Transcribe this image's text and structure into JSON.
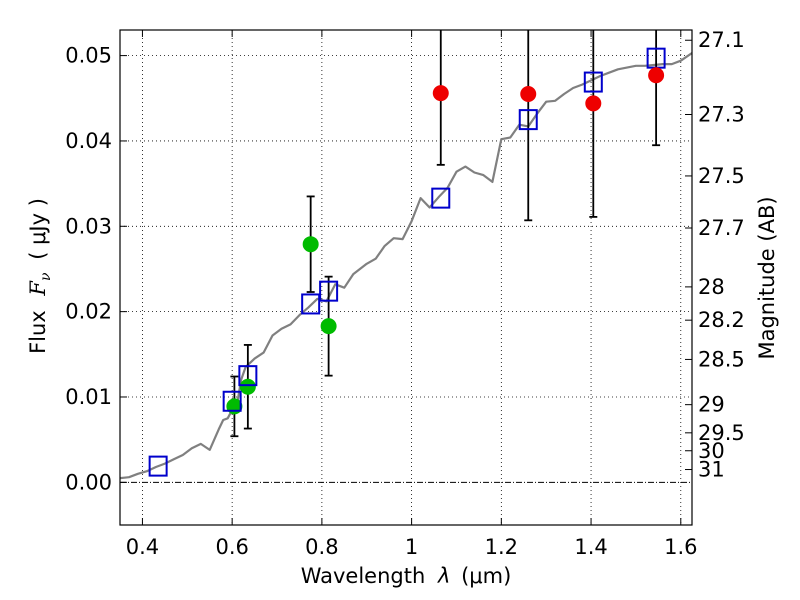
{
  "chart_data": {
    "type": "scatter",
    "xlabel_prefix": "Wavelength",
    "xlabel_symbol": "λ",
    "xlabel_unit": "(μm)",
    "ylabel_prefix": "Flux",
    "ylabel_symbol": "F",
    "ylabel_subscript": "ν",
    "ylabel_unit": "( μJy )",
    "y2label": "Magnitude (AB)",
    "xlim": [
      0.35,
      1.625
    ],
    "ylim": [
      -0.005,
      0.053
    ],
    "xticks": [
      0.4,
      0.6,
      0.8,
      1.0,
      1.2,
      1.4,
      1.6
    ],
    "xtick_labels": [
      "0.4",
      "0.6",
      "0.8",
      "1",
      "1.2",
      "1.4",
      "1.6"
    ],
    "yticks": [
      0.0,
      0.01,
      0.02,
      0.03,
      0.04,
      0.05
    ],
    "ytick_labels": [
      "0.00",
      "0.01",
      "0.02",
      "0.03",
      "0.04",
      "0.05"
    ],
    "mag_ticks": [
      {
        "label": "27.1",
        "flux": 0.0518
      },
      {
        "label": "27.3",
        "flux": 0.0431
      },
      {
        "label": "27.5",
        "flux": 0.0359
      },
      {
        "label": "27.7",
        "flux": 0.0298
      },
      {
        "label": "28",
        "flux": 0.0229
      },
      {
        "label": "28.2",
        "flux": 0.019
      },
      {
        "label": "28.5",
        "flux": 0.0144
      },
      {
        "label": "29",
        "flux": 0.0091
      },
      {
        "label": "29.5",
        "flux": 0.0058
      },
      {
        "label": "30",
        "flux": 0.0037
      },
      {
        "label": "31",
        "flux": 0.0015
      }
    ],
    "grid": true,
    "colors": {
      "model": "#808080",
      "box": "#0000cc",
      "green": "#00bb00",
      "red": "#ee0000",
      "errbar": "#000000"
    },
    "series": [
      {
        "name": "model-spectrum",
        "style": "line",
        "x": [
          0.35,
          0.37,
          0.39,
          0.41,
          0.43,
          0.45,
          0.47,
          0.49,
          0.51,
          0.53,
          0.55,
          0.57,
          0.58,
          0.59,
          0.6,
          0.61,
          0.62,
          0.63,
          0.65,
          0.67,
          0.69,
          0.71,
          0.73,
          0.75,
          0.77,
          0.79,
          0.81,
          0.83,
          0.85,
          0.87,
          0.9,
          0.92,
          0.94,
          0.96,
          0.98,
          1.0,
          1.02,
          1.04,
          1.06,
          1.08,
          1.1,
          1.12,
          1.14,
          1.16,
          1.18,
          1.2,
          1.22,
          1.24,
          1.26,
          1.28,
          1.3,
          1.32,
          1.34,
          1.36,
          1.38,
          1.4,
          1.42,
          1.44,
          1.46,
          1.48,
          1.5,
          1.52,
          1.54,
          1.56,
          1.58,
          1.6,
          1.625
        ],
        "y": [
          0.0005,
          0.0006,
          0.001,
          0.0013,
          0.0018,
          0.0022,
          0.0027,
          0.0032,
          0.004,
          0.0045,
          0.0038,
          0.0062,
          0.0073,
          0.0075,
          0.0085,
          0.0088,
          0.012,
          0.0135,
          0.0145,
          0.0152,
          0.0172,
          0.018,
          0.0185,
          0.0196,
          0.0205,
          0.0215,
          0.0212,
          0.0232,
          0.0228,
          0.0244,
          0.0256,
          0.0262,
          0.0277,
          0.0286,
          0.0285,
          0.0306,
          0.0333,
          0.0322,
          0.0334,
          0.0345,
          0.0364,
          0.037,
          0.0363,
          0.036,
          0.0352,
          0.0402,
          0.0404,
          0.0419,
          0.0417,
          0.0432,
          0.0446,
          0.0447,
          0.0455,
          0.0462,
          0.0466,
          0.0471,
          0.0476,
          0.048,
          0.0484,
          0.0486,
          0.0488,
          0.0488,
          0.0489,
          0.049,
          0.049,
          0.0494,
          0.0503
        ]
      },
      {
        "name": "model-photometry",
        "style": "open-square",
        "x": [
          0.435,
          0.6,
          0.635,
          0.775,
          0.815,
          1.065,
          1.26,
          1.405,
          1.545
        ],
        "y": [
          0.0019,
          0.0095,
          0.0125,
          0.0209,
          0.0224,
          0.0333,
          0.0425,
          0.0469,
          0.0497
        ]
      },
      {
        "name": "observed-optical",
        "style": "filled-circle-green",
        "x": [
          0.605,
          0.635,
          0.775,
          0.815
        ],
        "y": [
          0.0089,
          0.0112,
          0.0279,
          0.0183
        ],
        "yerr": [
          0.0035,
          0.0049,
          0.0056,
          0.0058
        ]
      },
      {
        "name": "observed-nir",
        "style": "filled-circle-red",
        "x": [
          1.065,
          1.26,
          1.405,
          1.545
        ],
        "y": [
          0.0456,
          0.0455,
          0.0444,
          0.0477
        ],
        "yerr": [
          0.0084,
          0.0148,
          0.0133,
          0.0082
        ]
      }
    ]
  }
}
